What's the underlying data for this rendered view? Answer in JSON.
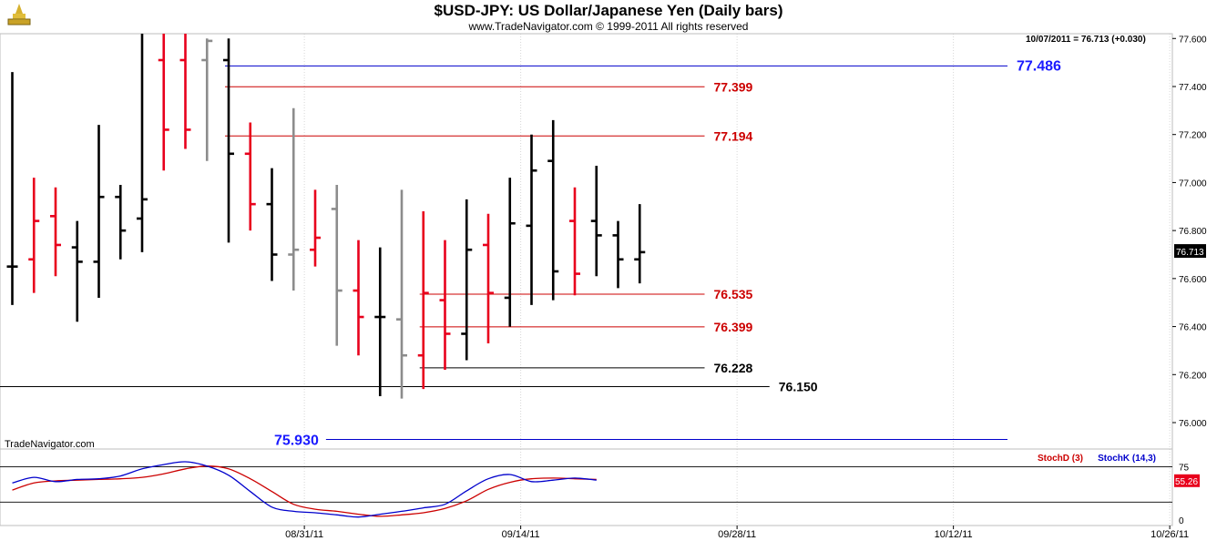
{
  "header": {
    "title": "$USD-JPY:  US Dollar/Japanese Yen  (Daily bars)",
    "subtitle": "www.TradeNavigator.com © 1999-2011 All rights reserved",
    "logo_icon": "trade-navigator-logo-icon"
  },
  "watermark": "TradeNavigator.com",
  "readout": "10/07/2011 = 76.713 (+0.030)",
  "colors": {
    "bar_black": "#000000",
    "bar_red": "#e8001c",
    "bar_gray": "#8c8c8c",
    "line_blue": "#0000cc",
    "line_red": "#cc0000",
    "text_blue": "#1a1aff",
    "last_price_bg": "#000000",
    "stoch_d": "#cc0000",
    "stoch_k": "#0000cc",
    "stoch_value_bg": "#e8001c"
  },
  "chart_data": [
    {
      "type": "ohlc",
      "title": "$USD-JPY:  US Dollar/Japanese Yen  (Daily bars)",
      "ylim": [
        75.89,
        77.62
      ],
      "y_ticks": [
        "77.600",
        "77.400",
        "77.200",
        "77.000",
        "76.800",
        "76.600",
        "76.400",
        "76.200",
        "76.000"
      ],
      "x_tick_labels": [
        "08/31/11",
        "09/14/11",
        "09/28/11",
        "10/12/11",
        "10/26/11"
      ],
      "x_tick_slots": [
        13.5,
        23.5,
        33.5,
        43.5,
        53.5
      ],
      "slots_visible": 53,
      "last_price": "76.713",
      "bars": [
        {
          "color": "black",
          "o": 76.65,
          "h": 77.46,
          "l": 76.49,
          "c": 76.65
        },
        {
          "color": "red",
          "o": 76.68,
          "h": 77.02,
          "l": 76.54,
          "c": 76.84
        },
        {
          "color": "red",
          "o": 76.86,
          "h": 76.98,
          "l": 76.61,
          "c": 76.74
        },
        {
          "color": "black",
          "o": 76.73,
          "h": 76.84,
          "l": 76.42,
          "c": 76.67
        },
        {
          "color": "black",
          "o": 76.67,
          "h": 77.24,
          "l": 76.52,
          "c": 76.94
        },
        {
          "color": "black",
          "o": 76.94,
          "h": 76.99,
          "l": 76.68,
          "c": 76.8
        },
        {
          "color": "black",
          "o": 76.85,
          "h": 77.62,
          "l": 76.71,
          "c": 76.93
        },
        {
          "color": "red",
          "o": 77.51,
          "h": 77.62,
          "l": 77.05,
          "c": 77.22
        },
        {
          "color": "red",
          "o": 77.51,
          "h": 77.62,
          "l": 77.14,
          "c": 77.22
        },
        {
          "color": "gray",
          "o": 77.51,
          "h": 77.6,
          "l": 77.09,
          "c": 77.59
        },
        {
          "color": "black",
          "o": 77.51,
          "h": 77.6,
          "l": 76.75,
          "c": 77.12
        },
        {
          "color": "red",
          "o": 77.12,
          "h": 77.25,
          "l": 76.8,
          "c": 76.91
        },
        {
          "color": "black",
          "o": 76.91,
          "h": 77.06,
          "l": 76.59,
          "c": 76.7
        },
        {
          "color": "gray",
          "o": 76.7,
          "h": 77.31,
          "l": 76.55,
          "c": 76.72
        },
        {
          "color": "red",
          "o": 76.72,
          "h": 76.97,
          "l": 76.65,
          "c": 76.77
        },
        {
          "color": "gray",
          "o": 76.89,
          "h": 76.99,
          "l": 76.32,
          "c": 76.55
        },
        {
          "color": "red",
          "o": 76.55,
          "h": 76.76,
          "l": 76.28,
          "c": 76.44
        },
        {
          "color": "black",
          "o": 76.44,
          "h": 76.73,
          "l": 76.11,
          "c": 76.44
        },
        {
          "color": "gray",
          "o": 76.43,
          "h": 76.97,
          "l": 76.1,
          "c": 76.28
        },
        {
          "color": "red",
          "o": 76.28,
          "h": 76.88,
          "l": 76.14,
          "c": 76.54
        },
        {
          "color": "red",
          "o": 76.51,
          "h": 76.76,
          "l": 76.22,
          "c": 76.37
        },
        {
          "color": "black",
          "o": 76.37,
          "h": 76.93,
          "l": 76.26,
          "c": 76.72
        },
        {
          "color": "red",
          "o": 76.74,
          "h": 76.87,
          "l": 76.33,
          "c": 76.54
        },
        {
          "color": "black",
          "o": 76.52,
          "h": 77.02,
          "l": 76.4,
          "c": 76.83
        },
        {
          "color": "black",
          "o": 76.82,
          "h": 77.2,
          "l": 76.49,
          "c": 77.05
        },
        {
          "color": "black",
          "o": 77.09,
          "h": 77.26,
          "l": 76.51,
          "c": 76.63
        },
        {
          "color": "red",
          "o": 76.84,
          "h": 76.98,
          "l": 76.53,
          "c": 76.62
        },
        {
          "color": "black",
          "o": 76.84,
          "h": 77.07,
          "l": 76.61,
          "c": 76.78
        },
        {
          "color": "black",
          "o": 76.78,
          "h": 76.84,
          "l": 76.56,
          "c": 76.68
        },
        {
          "color": "black",
          "o": 76.68,
          "h": 76.91,
          "l": 76.58,
          "c": 76.71
        }
      ],
      "horizontal_lines": [
        {
          "value": 77.486,
          "label": "77.486",
          "color": "blue",
          "from_slot": 10,
          "to_slot": 46,
          "label_side": "right"
        },
        {
          "value": 77.399,
          "label": "77.399",
          "color": "red",
          "from_slot": 10,
          "to_slot": 32,
          "label_side": "right"
        },
        {
          "value": 77.194,
          "label": "77.194",
          "color": "red",
          "from_slot": 10,
          "to_slot": 32,
          "label_side": "right"
        },
        {
          "value": 76.535,
          "label": "76.535",
          "color": "red",
          "from_slot": 19,
          "to_slot": 32,
          "label_side": "right"
        },
        {
          "value": 76.399,
          "label": "76.399",
          "color": "red",
          "from_slot": 19,
          "to_slot": 32,
          "label_side": "right"
        },
        {
          "value": 76.228,
          "label": "76.228",
          "color": "black",
          "from_slot": 19,
          "to_slot": 32,
          "label_side": "right"
        },
        {
          "value": 76.15,
          "label": "76.150",
          "color": "black",
          "from_slot": 0,
          "to_slot": 35,
          "label_side": "right"
        },
        {
          "value": 75.93,
          "label": "75.930",
          "color": "blue",
          "from_slot": 14.5,
          "to_slot": 46,
          "label_side": "left"
        }
      ]
    },
    {
      "type": "line",
      "ylim": [
        -8,
        100
      ],
      "y_ticks": [
        "75",
        "0"
      ],
      "reference_lines": [
        75,
        25
      ],
      "current_value": "55.26",
      "series": [
        {
          "name": "StochD (3)",
          "color": "red",
          "values": [
            42,
            52,
            55,
            56,
            57,
            58,
            60,
            65,
            72,
            76,
            72,
            58,
            40,
            22,
            15,
            12,
            8,
            5,
            7,
            10,
            16,
            27,
            43,
            53,
            58,
            59,
            58,
            57
          ]
        },
        {
          "name": "StochK (14,3)",
          "color": "blue",
          "values": [
            52,
            60,
            54,
            57,
            58,
            62,
            72,
            78,
            82,
            76,
            63,
            40,
            18,
            12,
            10,
            7,
            4,
            8,
            12,
            17,
            22,
            41,
            58,
            64,
            54,
            56,
            59,
            56
          ]
        }
      ]
    }
  ]
}
